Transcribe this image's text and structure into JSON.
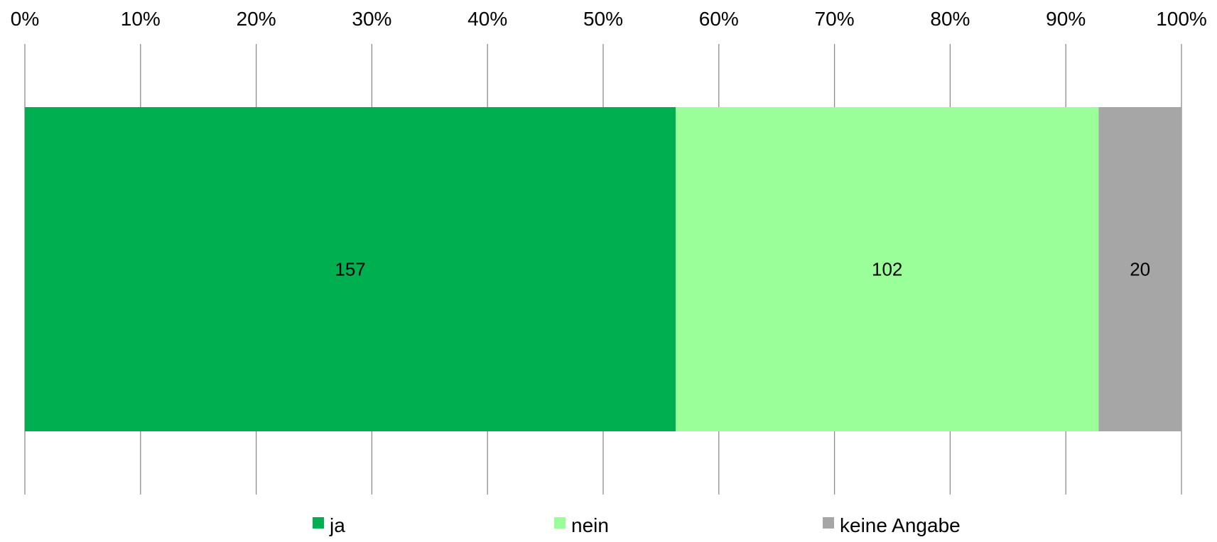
{
  "chart_data": {
    "type": "bar",
    "orientation": "horizontal",
    "stacked": "percent",
    "categories": [
      ""
    ],
    "series": [
      {
        "name": "ja",
        "values": [
          157
        ],
        "color": "#00AF50"
      },
      {
        "name": "nein",
        "values": [
          102
        ],
        "color": "#9AFF98"
      },
      {
        "name": "keine Angabe",
        "values": [
          20
        ],
        "color": "#A6A6A6"
      }
    ],
    "x_ticks": [
      "0%",
      "10%",
      "20%",
      "30%",
      "40%",
      "50%",
      "60%",
      "70%",
      "80%",
      "90%",
      "100%"
    ],
    "xlim": [
      0,
      100
    ],
    "axis_position": "top",
    "grid": true,
    "gridline_color": "#8C8C8C",
    "legend_position": "bottom",
    "title": "",
    "xlabel": "",
    "ylabel": ""
  }
}
